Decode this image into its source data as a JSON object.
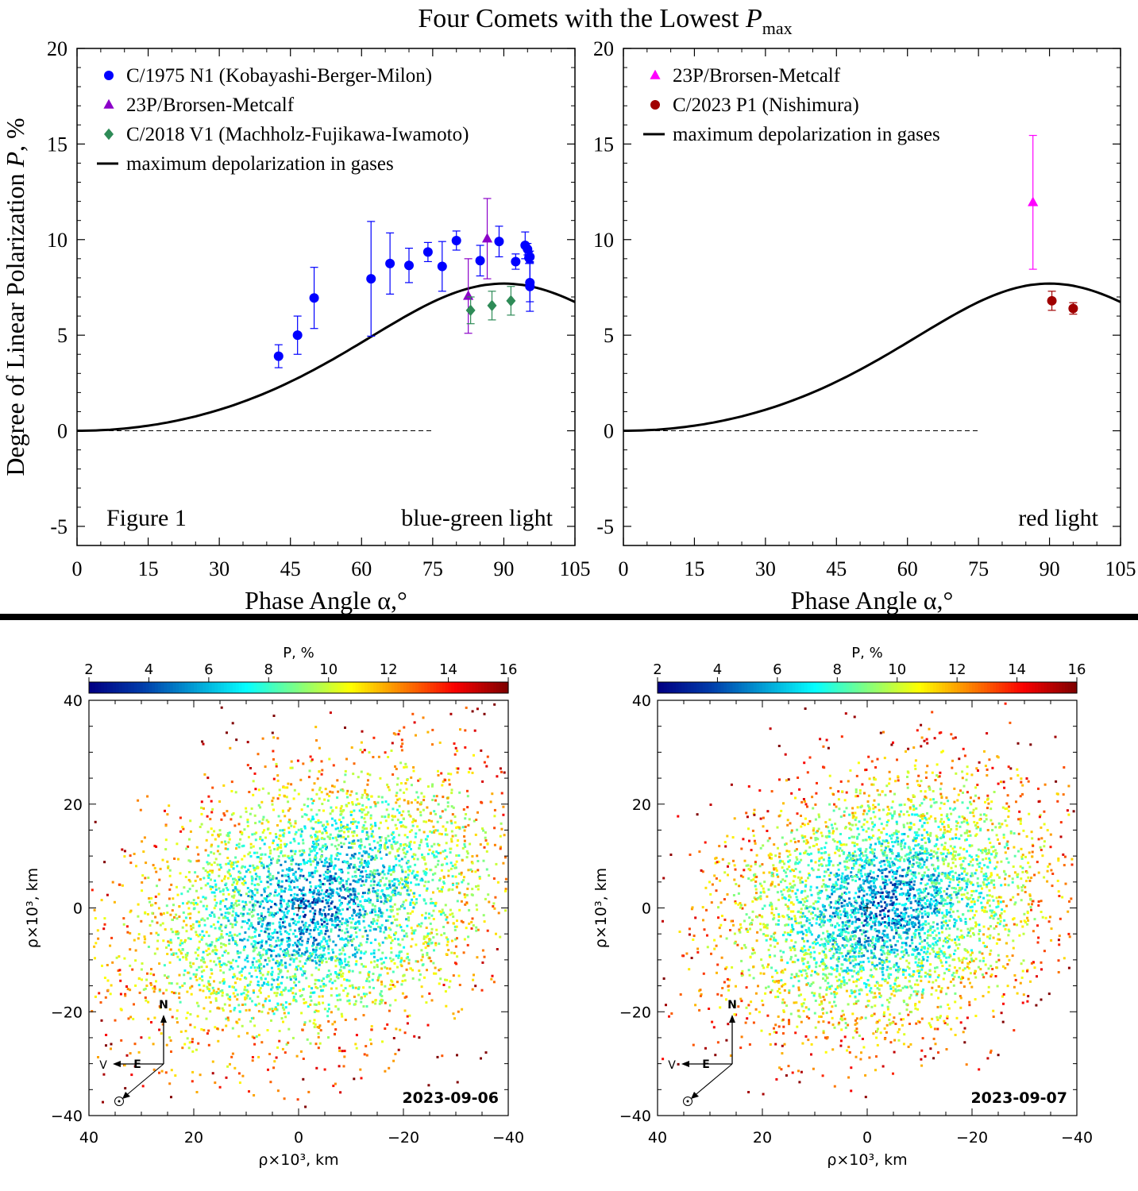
{
  "title": {
    "main": "Four Comets with the Lowest ",
    "var": "P",
    "sub": "max"
  },
  "chart_data": [
    {
      "type": "scatter",
      "panel": "top-left",
      "xlabel": "Phase Angle α,°",
      "ylabel": "Degree of Linear Polarization P, %",
      "ylabel_parts": {
        "pre": "Degree of Linear Polarization ",
        "var": "P",
        "post": ", %"
      },
      "xlim": [
        0,
        105
      ],
      "ylim": [
        -6,
        20
      ],
      "xticks": [
        0,
        15,
        30,
        45,
        60,
        75,
        90,
        105
      ],
      "yticks": [
        -5,
        0,
        5,
        10,
        15,
        20
      ],
      "corner_label": "Figure 1",
      "annotation": "blue-green light",
      "legend_position": "top-left",
      "series": [
        {
          "name": "C/1975 N1 (Kobayashi-Berger-Milon)",
          "marker": "circle",
          "color": "#0000ff",
          "x": [
            42.5,
            46.5,
            50,
            62,
            66,
            70,
            74,
            77,
            80,
            85,
            89,
            92.5,
            94.5,
            95,
            95.3,
            95.5,
            95.5,
            95.5
          ],
          "y": [
            3.9,
            5.0,
            6.95,
            7.95,
            8.75,
            8.65,
            9.35,
            8.6,
            9.95,
            8.9,
            9.9,
            8.85,
            9.7,
            9.5,
            9.05,
            9.1,
            7.75,
            7.55
          ],
          "err": [
            0.6,
            1.0,
            1.6,
            3.0,
            1.6,
            0.9,
            0.5,
            1.3,
            0.5,
            0.8,
            0.8,
            0.4,
            0.7,
            0.3,
            0.3,
            0.3,
            1.0,
            1.3
          ]
        },
        {
          "name": "23P/Brorsen-Metcalf",
          "marker": "triangle",
          "color": "#8b00c9",
          "x": [
            82.5,
            86.5
          ],
          "y": [
            7.05,
            10.05
          ],
          "err": [
            1.95,
            2.1
          ]
        },
        {
          "name": "C/2018 V1 (Machholz-Fujikawa-Iwamoto)",
          "marker": "diamond",
          "color": "#2e8b57",
          "x": [
            83,
            87.5,
            91.5
          ],
          "y": [
            6.3,
            6.55,
            6.8
          ],
          "err": [
            0.7,
            0.75,
            0.75
          ]
        },
        {
          "name": "maximum depolarization in gases",
          "marker": "line",
          "color": "#000000",
          "amplitude": 7.7
        }
      ]
    },
    {
      "type": "scatter",
      "panel": "top-right",
      "xlabel": "Phase Angle α,°",
      "xlim": [
        0,
        105
      ],
      "ylim": [
        -6,
        20
      ],
      "xticks": [
        0,
        15,
        30,
        45,
        60,
        75,
        90,
        105
      ],
      "yticks": [
        -5,
        0,
        5,
        10,
        15,
        20
      ],
      "annotation": "red light",
      "legend_position": "top-left",
      "series": [
        {
          "name": "23P/Brorsen-Metcalf",
          "marker": "triangle",
          "color": "#ff00ff",
          "x": [
            86.5
          ],
          "y": [
            11.95
          ],
          "err": [
            3.5
          ]
        },
        {
          "name": "C/2023 P1 (Nishimura)",
          "marker": "circle",
          "color": "#a00000",
          "x": [
            90.5,
            95
          ],
          "y": [
            6.8,
            6.4
          ],
          "err": [
            0.5,
            0.3
          ]
        },
        {
          "name": "maximum depolarization in gases",
          "marker": "line",
          "color": "#000000",
          "amplitude": 7.7
        }
      ]
    },
    {
      "type": "heatmap",
      "panel": "bottom-left",
      "date": "2023-09-06",
      "colorbar_label": "P, %",
      "colorbar_ticks": [
        2,
        4,
        6,
        8,
        10,
        12,
        14,
        16
      ],
      "xlabel": "ρ×10³, km",
      "ylabel": "ρ×10³, km",
      "xlim": [
        40,
        -40
      ],
      "ylim": [
        -40,
        40
      ],
      "xticks": [
        40,
        20,
        0,
        -20,
        -40
      ],
      "yticks": [
        40,
        20,
        0,
        -20,
        -40
      ],
      "compass": {
        "north": "N",
        "east": "E",
        "velocity": "V",
        "sun": "⊙"
      }
    },
    {
      "type": "heatmap",
      "panel": "bottom-right",
      "date": "2023-09-07",
      "colorbar_label": "P, %",
      "colorbar_ticks": [
        2,
        4,
        6,
        8,
        10,
        12,
        14,
        16
      ],
      "xlabel": "ρ×10³, km",
      "ylabel": "ρ×10³, km",
      "xlim": [
        40,
        -40
      ],
      "ylim": [
        -40,
        40
      ],
      "xticks": [
        40,
        20,
        0,
        -20,
        -40
      ],
      "yticks": [
        40,
        20,
        0,
        -20,
        -40
      ],
      "compass": {
        "north": "N",
        "east": "E",
        "velocity": "V",
        "sun": "⊙"
      }
    }
  ]
}
